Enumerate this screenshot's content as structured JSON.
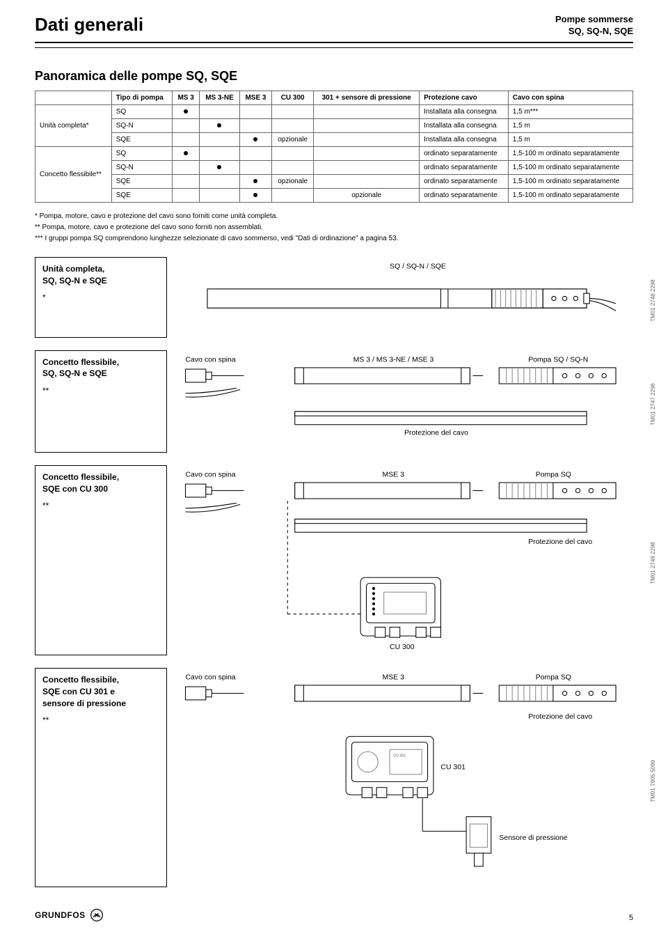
{
  "header": {
    "title": "Dati generali",
    "right_line1": "Pompe sommerse",
    "right_line2": "SQ, SQ-N, SQE"
  },
  "section_title": "Panoramica delle pompe SQ, SQE",
  "table": {
    "columns": [
      "",
      "Tipo di pompa",
      "MS 3",
      "MS 3-NE",
      "MSE 3",
      "CU 300",
      "301 + sensore di pressione",
      "Protezione cavo",
      "Cavo con spina"
    ],
    "group1_label": "Unità completa*",
    "group2_label": "Concetto flessibile**",
    "rows_g1": [
      {
        "tipo": "SQ",
        "ms3": true,
        "ms3ne": false,
        "mse3": false,
        "cu300": "",
        "s301": "",
        "prot": "Installata alla consegna",
        "cavo": "1,5 m***"
      },
      {
        "tipo": "SQ-N",
        "ms3": false,
        "ms3ne": true,
        "mse3": false,
        "cu300": "",
        "s301": "",
        "prot": "Installata alla consegna",
        "cavo": "1,5 m"
      },
      {
        "tipo": "SQE",
        "ms3": false,
        "ms3ne": false,
        "mse3": true,
        "cu300": "opzionale",
        "s301": "",
        "prot": "Installata alla consegna",
        "cavo": "1,5 m"
      }
    ],
    "rows_g2": [
      {
        "tipo": "SQ",
        "ms3": true,
        "ms3ne": false,
        "mse3": false,
        "cu300": "",
        "s301": "",
        "prot": "ordinato separatamente",
        "cavo": "1,5-100 m ordinato separatamente"
      },
      {
        "tipo": "SQ-N",
        "ms3": false,
        "ms3ne": true,
        "mse3": false,
        "cu300": "",
        "s301": "",
        "prot": "ordinato separatamente",
        "cavo": "1,5-100 m ordinato separatamente"
      },
      {
        "tipo": "SQE",
        "ms3": false,
        "ms3ne": false,
        "mse3": true,
        "cu300": "opzionale",
        "s301": "",
        "prot": "ordinato separatamente",
        "cavo": "1,5-100 m ordinato separatamente"
      },
      {
        "tipo": "SQE",
        "ms3": false,
        "ms3ne": false,
        "mse3": true,
        "cu300": "",
        "s301": "opzionale",
        "prot": "ordinato separatamente",
        "cavo": "1,5-100 m ordinato separatamente"
      }
    ]
  },
  "notes": {
    "n1": "* Pompa, motore, cavo e protezione del cavo sono forniti come unità completa.",
    "n2": "** Pompa, motore, cavo e protezione del cavo sono forniti non assemblati.",
    "n3": "*** I gruppi pompa SQ comprendono lunghezze selezionate di cavo sommerso, vedi \"Dati di ordinazione\" a pagina 53."
  },
  "panel1": {
    "title_l1": "Unità completa,",
    "title_l2": "SQ, SQ-N e SQE",
    "ast": "*",
    "label_top": "SQ / SQ-N / SQE",
    "code": "TM01 2748 2298"
  },
  "panel2": {
    "title_l1": "Concetto flessibile,",
    "title_l2": "SQ, SQ-N e SQE",
    "ast": "**",
    "cavo": "Cavo con spina",
    "motor": "MS 3 / MS 3-NE / MSE 3",
    "pump": "Pompa SQ / SQ-N",
    "prot": "Protezione del cavo",
    "code": "TM01 2747 2298"
  },
  "panel3": {
    "title_l1": "Concetto flessibile,",
    "title_l2": "SQE con CU 300",
    "ast": "**",
    "cavo": "Cavo con spina",
    "motor": "MSE 3",
    "pump": "Pompa SQ",
    "prot": "Protezione del cavo",
    "cu": "CU 300",
    "code": "TM01 2749 2298"
  },
  "panel4": {
    "title_l1": "Concetto flessibile,",
    "title_l2": "SQE con CU 301 e",
    "title_l3": "sensore di pressione",
    "ast": "**",
    "cavo": "Cavo con spina",
    "motor": "MSE 3",
    "pump": "Pompa SQ",
    "prot": "Protezione del cavo",
    "cu": "CU 301",
    "sensor": "Sensore di pressione",
    "code": "TM01 7905 5099"
  },
  "footer": {
    "page": "5",
    "brand": "GRUNDFOS"
  },
  "colors": {
    "line": "#000000",
    "grey": "#888888"
  }
}
